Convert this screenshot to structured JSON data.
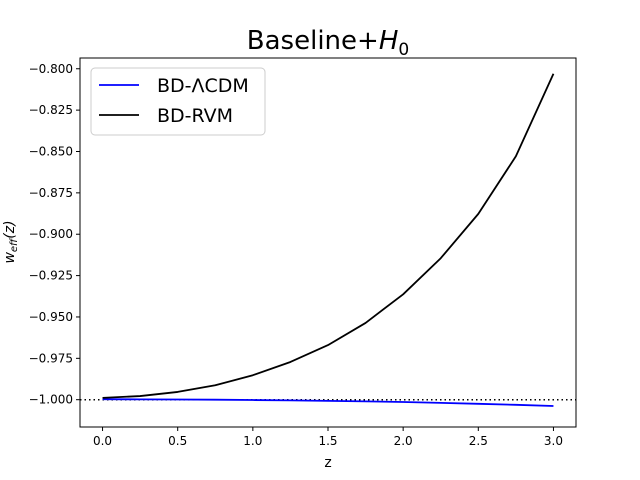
{
  "chart_data": {
    "type": "line",
    "title": "Baseline+",
    "title_math": "H",
    "title_math_sub": "0",
    "xlabel": "z",
    "ylabel": "w",
    "ylabel_sub": "eff",
    "ylabel_arg": "(z)",
    "xlim": [
      -0.15,
      3.15
    ],
    "ylim": [
      -1.0165,
      -0.7935
    ],
    "x_ticks": [
      {
        "value": 0.0,
        "label": "0.0"
      },
      {
        "value": 0.5,
        "label": "0.5"
      },
      {
        "value": 1.0,
        "label": "1.0"
      },
      {
        "value": 1.5,
        "label": "1.5"
      },
      {
        "value": 2.0,
        "label": "2.0"
      },
      {
        "value": 2.5,
        "label": "2.5"
      },
      {
        "value": 3.0,
        "label": "3.0"
      }
    ],
    "y_ticks": [
      {
        "value": -1.0,
        "label": "−1.000"
      },
      {
        "value": -0.975,
        "label": "−0.975"
      },
      {
        "value": -0.95,
        "label": "−0.950"
      },
      {
        "value": -0.925,
        "label": "−0.925"
      },
      {
        "value": -0.9,
        "label": "−0.900"
      },
      {
        "value": -0.875,
        "label": "−0.875"
      },
      {
        "value": -0.85,
        "label": "−0.850"
      },
      {
        "value": -0.825,
        "label": "−0.825"
      },
      {
        "value": -0.8,
        "label": "−0.800"
      }
    ],
    "reference_line": {
      "y": -1.0,
      "style": "dotted",
      "color": "#000000"
    },
    "grid": false,
    "legend_position": "top-left",
    "series": [
      {
        "name": "BD-ΛCDM",
        "color": "#0000ff",
        "x": [
          0.0,
          0.25,
          0.5,
          0.75,
          1.0,
          1.25,
          1.5,
          1.75,
          2.0,
          2.25,
          2.5,
          2.75,
          3.0
        ],
        "y": [
          -0.9997,
          -0.9998,
          -0.9999,
          -1.0,
          -1.0002,
          -1.0004,
          -1.0007,
          -1.001,
          -1.0014,
          -1.0019,
          -1.0025,
          -1.0031,
          -1.0038
        ]
      },
      {
        "name": "BD-RVM",
        "color": "#000000",
        "x": [
          0.0,
          0.25,
          0.5,
          0.75,
          1.0,
          1.25,
          1.5,
          1.75,
          2.0,
          2.25,
          2.5,
          2.75,
          3.0
        ],
        "y": [
          -0.9989,
          -0.9978,
          -0.9953,
          -0.9913,
          -0.9852,
          -0.9772,
          -0.967,
          -0.9536,
          -0.9363,
          -0.9145,
          -0.8877,
          -0.8529,
          -0.803
        ]
      }
    ]
  }
}
